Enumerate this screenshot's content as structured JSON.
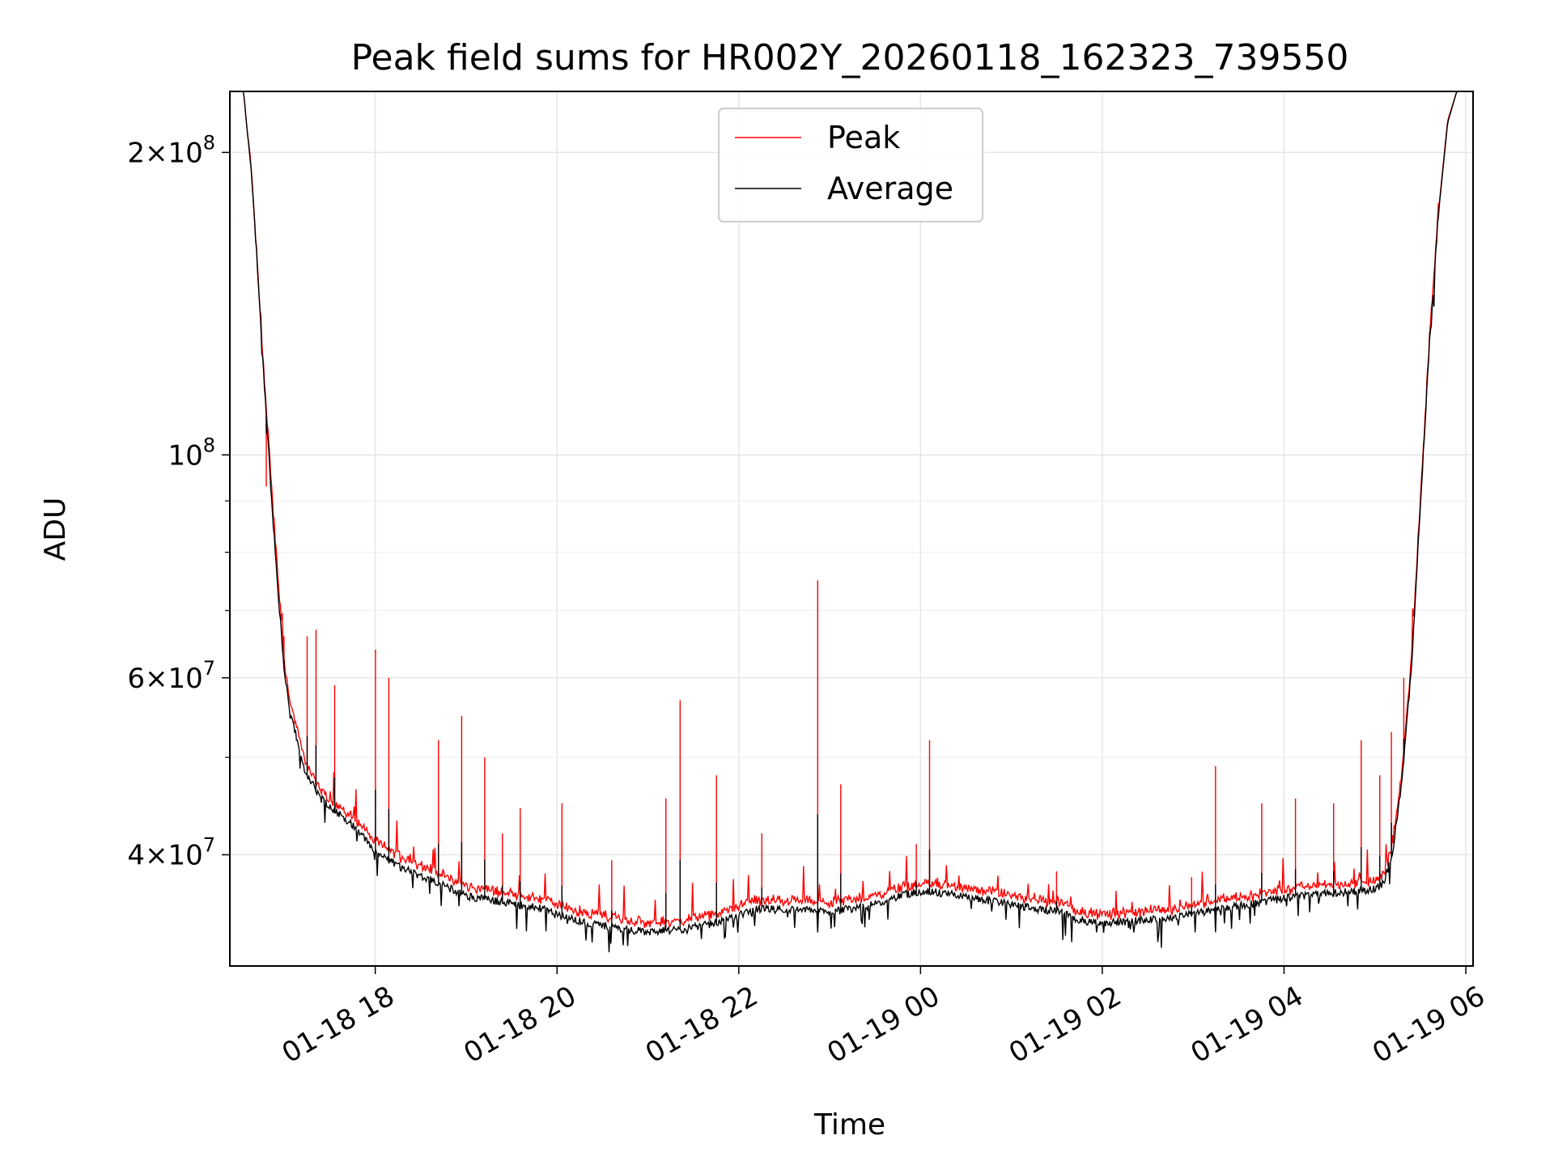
{
  "chart_data": {
    "type": "line",
    "title": "Peak field sums for HR002Y_20260118_162323_739550",
    "xlabel": "Time",
    "ylabel": "ADU",
    "yscale": "log",
    "ylim": [
      31000000,
      230000000
    ],
    "xlim_hours": [
      16.4,
      30.08
    ],
    "grid": true,
    "legend_position": "top-center",
    "x_ticks": [
      {
        "label": "01-18 18",
        "hour": 18
      },
      {
        "label": "01-18 20",
        "hour": 20
      },
      {
        "label": "01-18 22",
        "hour": 22
      },
      {
        "label": "01-19 00",
        "hour": 24
      },
      {
        "label": "01-19 02",
        "hour": 26
      },
      {
        "label": "01-19 04",
        "hour": 28
      },
      {
        "label": "01-19 06",
        "hour": 30
      }
    ],
    "y_ticks": [
      {
        "label": "4×10",
        "exp": "7",
        "value": 40000000
      },
      {
        "label": "6×10",
        "exp": "7",
        "value": 60000000
      },
      {
        "label": "10",
        "exp": "8",
        "value": 100000000
      },
      {
        "label": "2×10",
        "exp": "8",
        "value": 200000000
      }
    ],
    "y_minor_ticks": [
      50000000,
      70000000,
      80000000,
      90000000
    ],
    "series": [
      {
        "name": "Peak",
        "color": "#ff0000",
        "hours": [
          16.4,
          16.55,
          16.65,
          16.75,
          16.85,
          16.93,
          17.0,
          17.05,
          17.1,
          17.2,
          17.4,
          17.6,
          17.8,
          18.0,
          18.3,
          18.6,
          19.0,
          19.4,
          19.8,
          20.2,
          20.6,
          21.0,
          21.4,
          21.8,
          22.2,
          22.6,
          23.0,
          23.4,
          23.8,
          24.1,
          24.5,
          24.9,
          25.3,
          25.6,
          25.7,
          26.0,
          26.4,
          26.8,
          27.2,
          27.6,
          28.0,
          28.4,
          28.8,
          29.0,
          29.1,
          29.2,
          29.3,
          29.4,
          29.5,
          29.6,
          29.7,
          29.8,
          29.9,
          30.08
        ],
        "values": [
          230000000,
          230000000,
          185000000,
          130000000,
          95000000,
          75000000,
          62000000,
          57000000,
          55000000,
          50000000,
          46000000,
          44500000,
          43000000,
          41000000,
          39500000,
          38500000,
          37000000,
          36500000,
          36000000,
          35000000,
          34500000,
          34000000,
          34200000,
          34800000,
          35800000,
          35800000,
          35600000,
          36000000,
          37000000,
          37300000,
          36800000,
          36300000,
          35800000,
          35600000,
          35000000,
          34700000,
          34900000,
          35200000,
          35700000,
          36200000,
          36700000,
          37100000,
          37300000,
          37500000,
          38000000,
          41000000,
          48000000,
          62000000,
          90000000,
          130000000,
          175000000,
          215000000,
          230000000,
          230000000
        ],
        "spikes": [
          {
            "hour": 16.8,
            "value": 93000000
          },
          {
            "hour": 17.0,
            "value": 66000000
          },
          {
            "hour": 17.25,
            "value": 66000000
          },
          {
            "hour": 17.35,
            "value": 67000000
          },
          {
            "hour": 17.55,
            "value": 59000000
          },
          {
            "hour": 18.0,
            "value": 64000000
          },
          {
            "hour": 18.15,
            "value": 60000000
          },
          {
            "hour": 18.7,
            "value": 52000000
          },
          {
            "hour": 18.95,
            "value": 55000000
          },
          {
            "hour": 19.2,
            "value": 50000000
          },
          {
            "hour": 19.4,
            "value": 42000000
          },
          {
            "hour": 19.6,
            "value": 44500000
          },
          {
            "hour": 20.05,
            "value": 45000000
          },
          {
            "hour": 20.6,
            "value": 39500000
          },
          {
            "hour": 21.2,
            "value": 45500000
          },
          {
            "hour": 21.35,
            "value": 57000000
          },
          {
            "hour": 21.75,
            "value": 48000000
          },
          {
            "hour": 22.25,
            "value": 42000000
          },
          {
            "hour": 22.87,
            "value": 75000000
          },
          {
            "hour": 23.12,
            "value": 47000000
          },
          {
            "hour": 23.95,
            "value": 41000000
          },
          {
            "hour": 24.1,
            "value": 52000000
          },
          {
            "hour": 25.5,
            "value": 38500000
          },
          {
            "hour": 26.98,
            "value": 38000000
          },
          {
            "hour": 27.25,
            "value": 49000000
          },
          {
            "hour": 27.75,
            "value": 45000000
          },
          {
            "hour": 28.13,
            "value": 45500000
          },
          {
            "hour": 28.55,
            "value": 45000000
          },
          {
            "hour": 28.85,
            "value": 52000000
          },
          {
            "hour": 29.05,
            "value": 48000000
          },
          {
            "hour": 29.18,
            "value": 53000000
          },
          {
            "hour": 29.32,
            "value": 60000000
          }
        ]
      },
      {
        "name": "Average",
        "color": "#000000",
        "hours": [
          16.4,
          16.55,
          16.65,
          16.75,
          16.85,
          16.93,
          17.0,
          17.05,
          17.1,
          17.2,
          17.4,
          17.6,
          17.8,
          18.0,
          18.3,
          18.6,
          19.0,
          19.4,
          19.8,
          20.2,
          20.6,
          21.0,
          21.4,
          21.8,
          22.2,
          22.6,
          23.0,
          23.4,
          23.8,
          24.1,
          24.5,
          24.9,
          25.3,
          25.6,
          25.7,
          26.0,
          26.4,
          26.8,
          27.2,
          27.6,
          28.0,
          28.4,
          28.8,
          29.0,
          29.1,
          29.2,
          29.3,
          29.4,
          29.5,
          29.6,
          29.7,
          29.8,
          29.9,
          30.08
        ],
        "values": [
          230000000,
          230000000,
          185000000,
          130000000,
          93000000,
          73000000,
          61000000,
          56000000,
          54000000,
          49000000,
          45500000,
          44000000,
          42500000,
          40200000,
          38800000,
          37800000,
          36400000,
          35900000,
          35400000,
          34400000,
          33900000,
          33500000,
          33700000,
          34300000,
          35300000,
          35300000,
          35100000,
          35500000,
          36500000,
          36800000,
          36300000,
          35800000,
          35300000,
          35100000,
          34500000,
          34200000,
          34400000,
          34700000,
          35200000,
          35700000,
          36200000,
          36600000,
          36800000,
          37000000,
          37500000,
          40500000,
          47500000,
          61000000,
          89000000,
          129000000,
          174000000,
          214000000,
          230000000,
          230000000
        ]
      }
    ]
  }
}
